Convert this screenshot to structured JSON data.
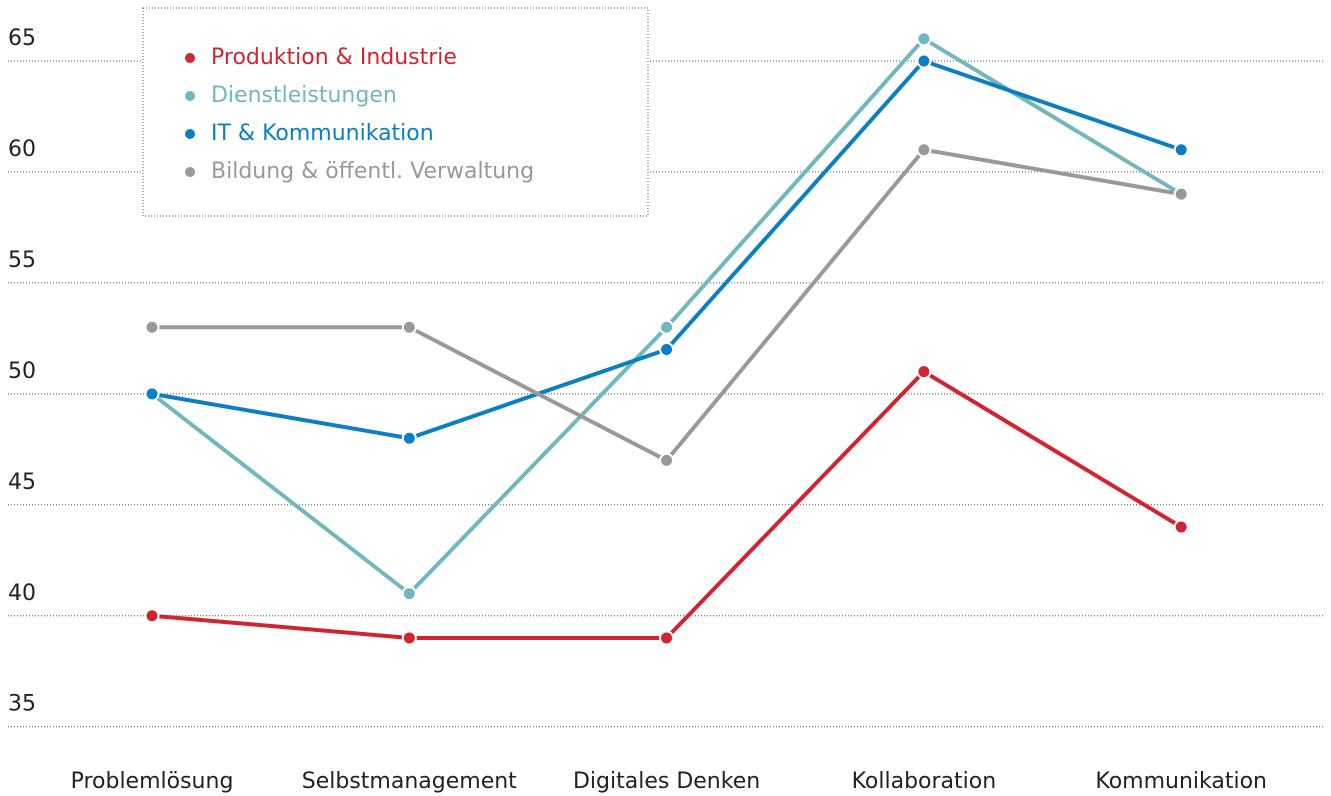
{
  "chart_data": {
    "type": "line",
    "categories": [
      "Problemlösung",
      "Selbstmanagement",
      "Digitales Denken",
      "Kollaboration",
      "Kommunikation"
    ],
    "series": [
      {
        "name": "Produktion & Industrie",
        "color": "#d0252f",
        "values": [
          40,
          39,
          39,
          51,
          44
        ]
      },
      {
        "name": "Dienstleistungen",
        "color": "#72b7bb",
        "values": [
          50,
          41,
          53,
          66,
          59
        ]
      },
      {
        "name": "IT & Kommunikation",
        "color": "#0a7fc4",
        "values": [
          50,
          48,
          52,
          65,
          61
        ]
      },
      {
        "name": "Bildung & öffentl. Verwaltung",
        "color": "#999999",
        "values": [
          53,
          53,
          47,
          61,
          59
        ]
      }
    ],
    "ylim": [
      33.5,
      67.5
    ],
    "yticks": [
      35,
      40,
      45,
      50,
      55,
      60,
      65
    ],
    "grid": true,
    "legend": "top-left"
  }
}
